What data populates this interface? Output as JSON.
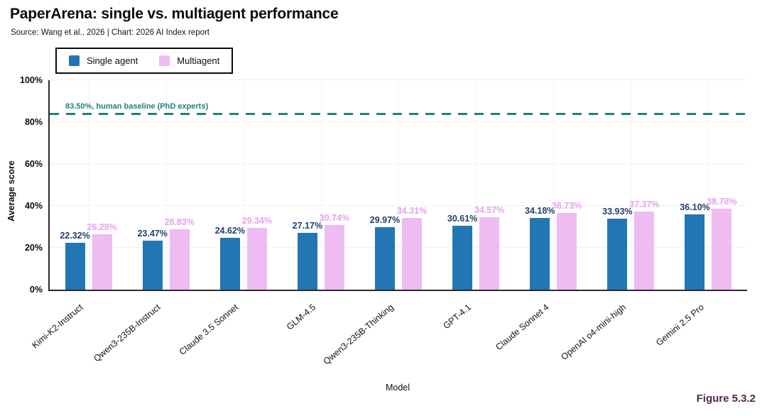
{
  "header": {
    "title": "PaperArena: single vs. multiagent performance",
    "source": "Source: Wang et al., 2026 | Chart: 2026 AI Index report"
  },
  "legend": {
    "position": "top-left",
    "items": [
      {
        "label": "Single agent",
        "color": "#2276b4"
      },
      {
        "label": "Multiagent",
        "color": "#eebbf3"
      }
    ]
  },
  "chart_data": {
    "type": "bar",
    "title": "PaperArena: single vs. multiagent performance",
    "xlabel": "Model",
    "ylabel": "Average score",
    "ylim": [
      0,
      100
    ],
    "grid": "on",
    "yticks": [
      {
        "value": 0,
        "label": "0%"
      },
      {
        "value": 20,
        "label": "20%"
      },
      {
        "value": 40,
        "label": "40%"
      },
      {
        "value": 60,
        "label": "60%"
      },
      {
        "value": 80,
        "label": "80%"
      },
      {
        "value": 100,
        "label": "100%"
      }
    ],
    "categories": [
      "Kimi-K2-Instruct",
      "Qwen3-235B-Instruct",
      "Claude 3.5 Sonnet",
      "GLM-4.5",
      "Qwen3-235B-Thinking",
      "GPT-4.1",
      "Claude Sonnet 4",
      "OpenAI o4-mini-high",
      "Gemini 2.5 Pro"
    ],
    "series": [
      {
        "name": "Single agent",
        "color": "#2276b4",
        "label_color": "#20406e",
        "values": [
          22.32,
          23.47,
          24.62,
          27.17,
          29.97,
          30.61,
          34.18,
          33.93,
          36.1
        ]
      },
      {
        "name": "Multiagent",
        "color": "#eebbf3",
        "label_color": "#e5a3ec",
        "values": [
          26.28,
          28.83,
          29.34,
          30.74,
          34.31,
          34.57,
          36.73,
          37.37,
          38.78
        ]
      }
    ],
    "baseline": {
      "value": 83.5,
      "label": "83.50%, human baseline (PhD experts)",
      "color": "#20817d",
      "style": "dashed"
    }
  },
  "figure_label": "Figure 5.3.2",
  "colors": {
    "figure_label": "#4e284b",
    "axis": "#2b2b2b",
    "grid": "#f1eff2"
  }
}
